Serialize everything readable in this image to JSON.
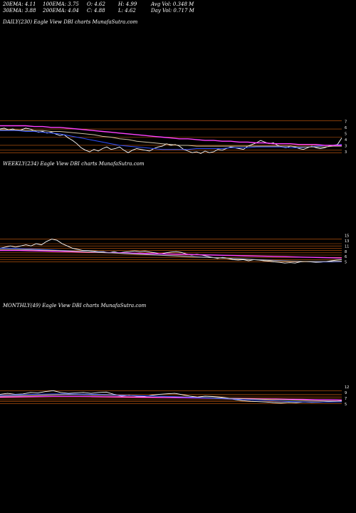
{
  "stats": {
    "ema20": "20EMA: 4.11",
    "ema100": "100EMA: 3.75",
    "open": "O: 4.62",
    "high": "H: 4.99",
    "avg_vol": "Avg Vol: 0.348  M",
    "ema30": "30EMA: 3.88",
    "ema200": "200EMA: 4.04",
    "close": "C: 4.88",
    "low": "L: 4.62",
    "day_vol": "Day Vol: 0.717 M"
  },
  "colors": {
    "background": "#000000",
    "price": "#ffffff",
    "ema_short": "#3050ff",
    "ema_mid": "#d0c0a0",
    "ema_long": "#ff40ff",
    "level": "#d06010"
  },
  "chart_data": [
    {
      "type": "line",
      "title": "DAILY(230) Eagle   View  DBI charts MunafaSutra.com",
      "y_ticks": [
        "7",
        "6",
        "5",
        "4",
        "3",
        "3"
      ],
      "ylim": [
        2.6,
        7.4
      ],
      "levels": [
        7,
        6,
        5,
        4,
        3.4,
        3.1
      ],
      "series": [
        {
          "role": "price",
          "values": [
            6.0,
            6.1,
            5.9,
            6.0,
            5.8,
            5.9,
            6.1,
            6.0,
            5.8,
            5.6,
            5.7,
            5.5,
            5.6,
            5.4,
            5.2,
            5.3,
            4.9,
            4.6,
            4.2,
            3.7,
            3.4,
            3.2,
            3.5,
            3.3,
            3.6,
            3.8,
            3.5,
            3.6,
            3.8,
            3.4,
            3.1,
            3.4,
            3.6,
            3.5,
            3.4,
            3.3,
            3.6,
            3.8,
            3.9,
            4.2,
            4.0,
            4.1,
            3.9,
            3.5,
            3.3,
            3.1,
            3.2,
            3.0,
            3.3,
            3.1,
            3.2,
            3.5,
            3.4,
            3.6,
            3.8,
            3.7,
            3.6,
            3.5,
            3.9,
            4.1,
            4.3,
            4.6,
            4.4,
            4.2,
            4.3,
            4.0,
            3.8,
            3.7,
            3.9,
            3.8,
            3.6,
            3.5,
            3.7,
            3.9,
            3.7,
            3.6,
            3.7,
            3.9,
            4.0,
            4.1,
            4.9
          ]
        },
        {
          "role": "ema_short",
          "values": [
            5.8,
            5.8,
            5.8,
            5.7,
            5.7,
            5.6,
            5.5,
            5.4,
            5.2,
            5.0,
            4.8,
            4.6,
            4.4,
            4.2,
            4.0,
            3.9,
            3.8,
            3.7,
            3.6,
            3.5,
            3.5,
            3.5,
            3.5,
            3.6,
            3.6,
            3.6,
            3.6,
            3.7,
            3.7,
            3.7,
            3.8,
            3.8,
            3.8,
            3.8,
            3.7,
            3.7,
            3.8,
            3.9,
            4.0,
            4.0,
            4.1
          ]
        },
        {
          "role": "ema_mid",
          "values": [
            5.9,
            5.9,
            5.9,
            5.8,
            5.8,
            5.8,
            5.7,
            5.7,
            5.6,
            5.5,
            5.4,
            5.3,
            5.1,
            5.0,
            4.8,
            4.7,
            4.5,
            4.4,
            4.3,
            4.2,
            4.1,
            4.0,
            4.0,
            3.9,
            3.9,
            3.9,
            3.9,
            3.9,
            3.9,
            3.9,
            3.9,
            3.9,
            3.9,
            3.9,
            3.9,
            3.8,
            3.8,
            3.8,
            3.8,
            3.9,
            3.9
          ]
        },
        {
          "role": "ema_long",
          "values": [
            6.4,
            6.4,
            6.4,
            6.4,
            6.3,
            6.3,
            6.2,
            6.2,
            6.1,
            6.0,
            5.9,
            5.8,
            5.7,
            5.6,
            5.5,
            5.4,
            5.3,
            5.2,
            5.1,
            5.0,
            4.9,
            4.8,
            4.8,
            4.7,
            4.6,
            4.6,
            4.5,
            4.5,
            4.4,
            4.4,
            4.3,
            4.3,
            4.2,
            4.2,
            4.2,
            4.1,
            4.1,
            4.1,
            4.0,
            4.0,
            4.0
          ]
        }
      ]
    },
    {
      "type": "line",
      "title": "WEEKLY(234) Eagle   View  DBI charts MunafaSutra.com",
      "y_ticks": [
        "15",
        "13",
        "11",
        "8",
        "6",
        "5"
      ],
      "ylim": [
        3,
        18
      ],
      "levels": [
        15,
        13,
        12,
        11,
        10,
        9,
        8,
        7,
        6,
        5
      ],
      "series": [
        {
          "role": "price",
          "values": [
            11,
            11.5,
            12,
            11.5,
            12,
            12.5,
            12,
            13,
            12.5,
            14,
            15,
            14.5,
            13,
            12,
            11,
            10.5,
            10,
            10,
            9.8,
            9.5,
            9.5,
            9,
            9.5,
            9,
            9.3,
            9.5,
            9.8,
            9.5,
            9.7,
            9.3,
            9,
            8.5,
            9,
            9.3,
            9.5,
            9.2,
            8.5,
            8,
            8.3,
            8,
            7.5,
            7,
            6.5,
            7,
            6.5,
            6,
            5.8,
            6,
            5.5,
            6,
            5.8,
            5.5,
            5.3,
            5,
            4.8,
            4.5,
            4.7,
            4.5,
            5,
            5.2,
            5,
            4.8,
            4.9,
            5.2,
            5.5,
            5.8,
            6
          ]
        },
        {
          "role": "ema_long",
          "values": [
            10,
            10,
            10,
            9.9,
            9.8,
            9.7,
            9.6,
            9.5,
            9.4,
            9.3,
            9.2,
            9.1,
            9,
            8.9,
            8.8,
            8.7,
            8.6,
            8.5,
            8.4,
            8.3,
            8.2,
            8.1,
            8,
            7.9,
            7.8,
            7.7,
            7.6,
            7.5,
            7.4,
            7.3,
            7.2,
            7.1,
            7,
            6.9,
            6.8,
            6.7
          ]
        },
        {
          "role": "ema_short",
          "values": [
            11,
            11,
            10.9,
            10.7,
            10.5,
            10.3,
            10.1,
            9.9,
            9.7,
            9.5,
            9.3,
            9.1,
            8.9,
            8.7,
            8.5,
            8.3,
            8.1,
            7.9,
            7.7,
            7.5,
            7.3,
            7.1,
            6.9,
            6.7,
            6.5,
            6.3,
            6.1,
            5.9,
            5.7,
            5.5,
            5.3,
            5.2,
            5.1,
            5.0,
            5.0,
            5.1
          ]
        },
        {
          "role": "ema_mid",
          "values": [
            10.5,
            10.5,
            10.4,
            10.3,
            10.2,
            10.1,
            10,
            9.8,
            9.6,
            9.4,
            9.2,
            9,
            8.8,
            8.6,
            8.4,
            8.2,
            8,
            7.8,
            7.6,
            7.4,
            7.2,
            7,
            6.8,
            6.6,
            6.4,
            6.2,
            6,
            5.8,
            5.6,
            5.4,
            5.3,
            5.2,
            5.2,
            5.2,
            5.2,
            5.3
          ]
        }
      ]
    },
    {
      "type": "line",
      "title": "MONTHLY(49) Eagle   View  DBI charts MunafaSutra.com",
      "y_ticks": [
        "12",
        "9",
        "7",
        "5"
      ],
      "ylim": [
        2,
        16
      ],
      "levels": [
        12,
        10,
        9,
        8,
        7,
        6,
        5
      ],
      "series": [
        {
          "role": "price",
          "values": [
            10,
            10.5,
            10,
            10.2,
            11,
            10.8,
            11.5,
            12,
            11,
            10.5,
            10.8,
            11,
            10.5,
            11,
            11.2,
            10,
            9,
            9.5,
            9,
            8.8,
            9.5,
            10,
            10.3,
            10.5,
            9.8,
            9,
            8.5,
            9,
            8.8,
            8.5,
            8,
            7,
            6.5,
            6.2,
            6,
            5.8,
            5.5,
            5.3,
            5.6,
            5.5,
            5.8,
            5.6,
            5.7,
            6,
            6.2,
            6.5
          ]
        },
        {
          "role": "ema_long",
          "values": [
            8.5,
            8.6,
            8.7,
            8.8,
            8.9,
            8.9,
            8.9,
            8.8,
            8.7,
            8.6,
            8.5,
            8.4,
            8.3,
            8.2,
            8.1,
            8,
            7.9,
            7.8,
            7.7,
            7.6,
            7.5,
            7.4,
            7.3,
            7.2,
            7.1,
            7,
            6.9
          ]
        },
        {
          "role": "ema_mid",
          "values": [
            9,
            9.1,
            9.3,
            9.5,
            9.7,
            9.8,
            9.8,
            9.7,
            9.6,
            9.5,
            9.3,
            9.1,
            8.9,
            8.7,
            8.5,
            8.3,
            8.1,
            7.9,
            7.7,
            7.5,
            7.3,
            7.1,
            6.9,
            6.7,
            6.5,
            6.4,
            6.3
          ]
        },
        {
          "role": "ema_short",
          "values": [
            9.5,
            9.7,
            9.9,
            10.1,
            10.2,
            10.2,
            10.1,
            10,
            9.8,
            9.6,
            9.4,
            9.2,
            9,
            8.8,
            8.5,
            8.2,
            7.9,
            7.6,
            7.3,
            7,
            6.7,
            6.4,
            6.1,
            5.9,
            5.8,
            5.8,
            5.9
          ]
        }
      ]
    }
  ]
}
